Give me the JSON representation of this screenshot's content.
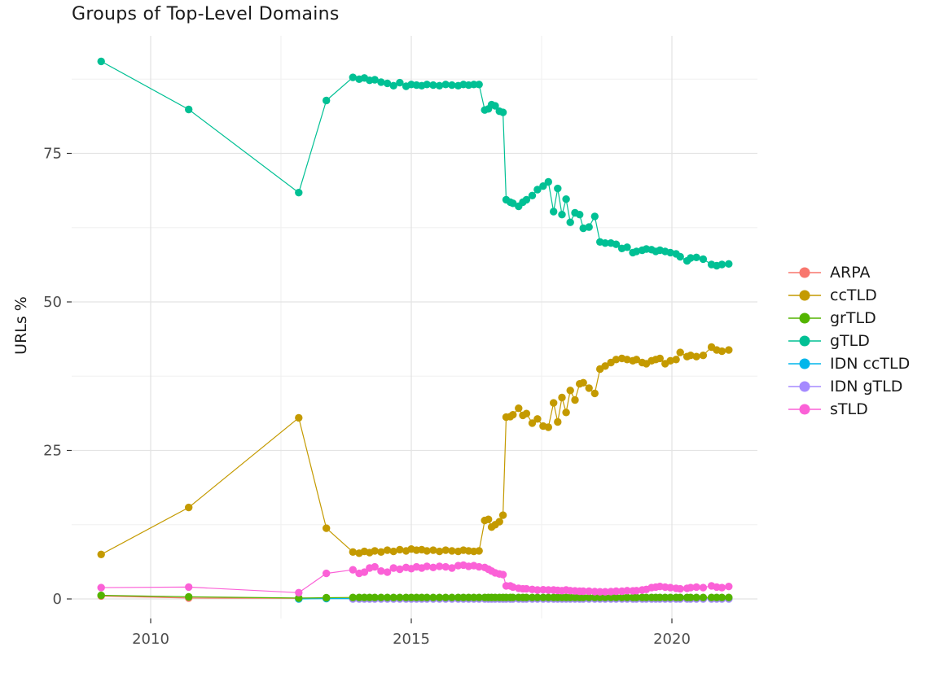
{
  "chart_data": {
    "type": "line",
    "title": "Groups of Top-Level Domains",
    "xlabel": "",
    "ylabel": "URLs %",
    "legend_position": "right",
    "grid": "major+minor",
    "axes": {
      "x_ticks": [
        {
          "value": 2010,
          "label": "2010"
        },
        {
          "value": 2015,
          "label": "2015"
        },
        {
          "value": 2020,
          "label": "2020"
        }
      ],
      "y_ticks": [
        {
          "value": 0,
          "label": "0"
        },
        {
          "value": 25,
          "label": "25"
        },
        {
          "value": 50,
          "label": "50"
        },
        {
          "value": 75,
          "label": "75"
        }
      ],
      "minor_x": [
        2012.5,
        2017.5
      ],
      "minor_y": [
        12.5,
        37.5,
        62.5,
        87.5
      ],
      "x_range": [
        2008.48,
        2021.64
      ],
      "y_range": [
        -3.3,
        94.8
      ]
    },
    "x_dense": [
      2013.88,
      2014.0,
      2014.1,
      2014.2,
      2014.3,
      2014.42,
      2014.54,
      2014.66,
      2014.78,
      2014.9,
      2015.0,
      2015.1,
      2015.2,
      2015.3,
      2015.42,
      2015.54,
      2015.66,
      2015.78,
      2015.9,
      2016.0,
      2016.1,
      2016.2,
      2016.3,
      2016.41,
      2016.48,
      2016.54,
      2016.61,
      2016.69,
      2016.76,
      2016.82,
      2016.9,
      2016.95,
      2017.06,
      2017.14,
      2017.21,
      2017.32,
      2017.42,
      2017.53,
      2017.63,
      2017.73,
      2017.81,
      2017.89,
      2017.97,
      2018.05,
      2018.14,
      2018.23,
      2018.3,
      2018.41,
      2018.52,
      2018.62,
      2018.72,
      2018.83,
      2018.93,
      2019.04,
      2019.14,
      2019.25,
      2019.32,
      2019.43,
      2019.51,
      2019.61,
      2019.69,
      2019.77,
      2019.87,
      2019.97,
      2020.08,
      2020.16,
      2020.29,
      2020.36,
      2020.47,
      2020.6,
      2020.76,
      2020.86,
      2020.96,
      2021.09
    ],
    "draw_order": [
      0,
      4,
      5,
      2,
      1,
      3,
      6
    ],
    "series": [
      {
        "name": "ARPA",
        "color": "#F8766D",
        "points": [
          [
            2009.05,
            0.5
          ],
          [
            2010.73,
            0.15
          ],
          [
            2012.84,
            0.1
          ],
          [
            2013.37,
            0.1
          ]
        ],
        "flat_value": 0.1
      },
      {
        "name": "ccTLD",
        "color": "#C49A00",
        "points": [
          [
            2009.05,
            7.5
          ],
          [
            2010.73,
            15.4
          ],
          [
            2012.84,
            30.5
          ],
          [
            2013.37,
            11.9
          ]
        ],
        "dense_values": [
          7.9,
          7.7,
          8.0,
          7.8,
          8.1,
          7.9,
          8.2,
          8.0,
          8.3,
          8.1,
          8.4,
          8.2,
          8.3,
          8.1,
          8.2,
          8.0,
          8.2,
          8.1,
          8.0,
          8.2,
          8.1,
          8.0,
          8.1,
          13.2,
          13.4,
          12.1,
          12.5,
          13.0,
          14.1,
          30.6,
          30.7,
          31.0,
          32.1,
          30.9,
          31.2,
          29.6,
          30.3,
          29.1,
          28.9,
          33.0,
          29.8,
          33.9,
          31.4,
          35.1,
          33.5,
          36.2,
          36.4,
          35.5,
          34.6,
          38.7,
          39.2,
          39.8,
          40.3,
          40.5,
          40.3,
          40.1,
          40.3,
          39.8,
          39.6,
          40.1,
          40.3,
          40.5,
          39.6,
          40.1,
          40.3,
          41.5,
          40.8,
          41.0,
          40.8,
          41.0,
          42.4,
          41.9,
          41.7,
          41.9
        ]
      },
      {
        "name": "grTLD",
        "color": "#53B400",
        "points": [
          [
            2009.05,
            0.6
          ],
          [
            2010.73,
            0.35
          ],
          [
            2012.84,
            0.15
          ],
          [
            2013.37,
            0.2
          ]
        ],
        "flat_value": 0.25
      },
      {
        "name": "gTLD",
        "color": "#00C094",
        "points": [
          [
            2009.05,
            90.5
          ],
          [
            2010.73,
            82.4
          ],
          [
            2012.84,
            68.4
          ],
          [
            2013.37,
            83.9
          ]
        ],
        "dense_values": [
          87.8,
          87.5,
          87.7,
          87.3,
          87.4,
          87.0,
          86.8,
          86.4,
          86.9,
          86.3,
          86.6,
          86.5,
          86.4,
          86.6,
          86.5,
          86.4,
          86.6,
          86.5,
          86.4,
          86.6,
          86.5,
          86.6,
          86.6,
          82.3,
          82.5,
          83.2,
          83.0,
          82.1,
          81.9,
          67.2,
          66.8,
          66.6,
          66.1,
          66.8,
          67.2,
          67.9,
          68.9,
          69.5,
          70.2,
          65.2,
          69.1,
          64.7,
          67.3,
          63.4,
          65.0,
          64.7,
          62.4,
          62.6,
          64.4,
          60.1,
          59.9,
          59.9,
          59.7,
          59.0,
          59.2,
          58.3,
          58.5,
          58.7,
          58.9,
          58.8,
          58.5,
          58.7,
          58.5,
          58.3,
          58.1,
          57.6,
          56.9,
          57.4,
          57.5,
          57.2,
          56.3,
          56.1,
          56.3,
          56.4
        ]
      },
      {
        "name": "IDN ccTLD",
        "color": "#00B6EB",
        "points": [
          [
            2012.84,
            0.0
          ],
          [
            2013.37,
            0.05
          ]
        ],
        "flat_value": 0.05
      },
      {
        "name": "IDN gTLD",
        "color": "#A58AFF",
        "points": [],
        "flat_value": 0.0
      },
      {
        "name": "sTLD",
        "color": "#FB61D7",
        "points": [
          [
            2009.05,
            1.9
          ],
          [
            2010.73,
            2.0
          ],
          [
            2012.84,
            1.05
          ],
          [
            2013.37,
            4.3
          ]
        ],
        "dense_values": [
          4.9,
          4.3,
          4.5,
          5.2,
          5.4,
          4.7,
          4.5,
          5.2,
          5.0,
          5.3,
          5.1,
          5.4,
          5.2,
          5.5,
          5.3,
          5.5,
          5.4,
          5.2,
          5.6,
          5.7,
          5.5,
          5.6,
          5.4,
          5.3,
          5.0,
          4.7,
          4.4,
          4.2,
          4.1,
          2.2,
          2.2,
          2.0,
          1.8,
          1.7,
          1.7,
          1.6,
          1.5,
          1.55,
          1.5,
          1.5,
          1.45,
          1.4,
          1.5,
          1.4,
          1.35,
          1.3,
          1.3,
          1.3,
          1.25,
          1.2,
          1.2,
          1.25,
          1.3,
          1.3,
          1.4,
          1.35,
          1.4,
          1.5,
          1.6,
          1.9,
          2.0,
          2.1,
          2.0,
          1.9,
          1.8,
          1.7,
          1.8,
          1.9,
          2.0,
          1.9,
          2.2,
          2.0,
          1.9,
          2.1
        ]
      }
    ],
    "style": {
      "grid_major_color": "#e4e4e4",
      "grid_minor_color": "#f0f0f0",
      "tick_color": "#333333",
      "tick_label_color": "#4d4d4d",
      "title_color": "#1a1a1a",
      "point_radius": 4.7
    }
  }
}
